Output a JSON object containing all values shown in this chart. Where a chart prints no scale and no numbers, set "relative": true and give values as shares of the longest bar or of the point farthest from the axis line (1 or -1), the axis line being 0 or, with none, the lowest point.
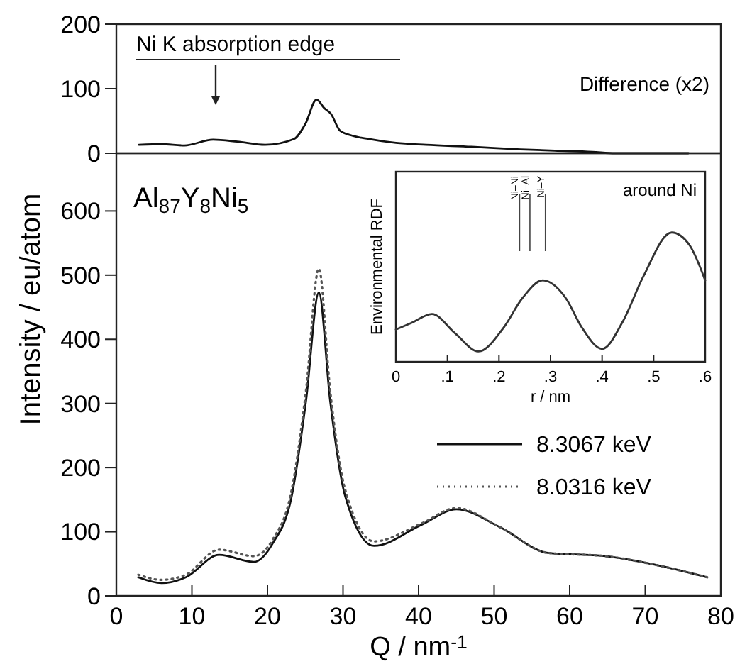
{
  "chart_data": [
    {
      "type": "line",
      "xlim": [
        0,
        80
      ],
      "ylim": [
        0,
        200
      ],
      "yticks": [
        0,
        100,
        200
      ],
      "tick_labels": "y",
      "legend": false,
      "series": [
        {
          "name": "Difference (x2)",
          "color": "#111111",
          "x": [
            3,
            6,
            9,
            12.8,
            16,
            19.7,
            23.5,
            25,
            26.5,
            27.5,
            28.4,
            29.6,
            31,
            33.4,
            37,
            41,
            47,
            53.5,
            58,
            63,
            66,
            70,
            75.7
          ],
          "values": [
            13,
            14,
            12,
            21,
            18,
            13,
            22,
            45,
            83,
            70,
            61,
            35,
            28,
            22,
            16,
            13,
            10,
            6,
            4,
            2,
            0,
            0,
            0
          ]
        }
      ],
      "annotations": [
        "Ni K absorption edge"
      ]
    },
    {
      "type": "line",
      "xlim": [
        0,
        80
      ],
      "ylim": [
        0,
        690
      ],
      "xticks": [
        0,
        10,
        20,
        30,
        40,
        50,
        60,
        70,
        80
      ],
      "yticks": [
        0,
        100,
        200,
        300,
        400,
        500,
        600
      ],
      "xlabel": "Q / nm$^{-1}$",
      "ylabel": "Intensity / eu/atom",
      "legend": "bottom right",
      "series": [
        {
          "name": "8.3067 keV",
          "color": "#111111",
          "line_style": "solid",
          "x": [
            2.9,
            6,
            9.2,
            13.6,
            18.2,
            20.7,
            23.2,
            25.1,
            26.8,
            28.3,
            30.3,
            34.1,
            40.4,
            45,
            50.8,
            57.1,
            64.7,
            71.1,
            78.2
          ],
          "values": [
            29,
            20,
            29,
            64,
            53,
            82,
            155,
            304,
            473,
            304,
            155,
            78,
            111,
            135,
            107,
            67,
            62,
            49,
            29
          ]
        },
        {
          "name": "8.0316 keV",
          "color": "#555555",
          "line_style": "dotted",
          "x": [
            2.9,
            6,
            9.2,
            13.6,
            18.2,
            20.7,
            23.2,
            25.1,
            26.8,
            28.3,
            30.3,
            34.1,
            40.4,
            45,
            50.8,
            57.1,
            64.7,
            71.1,
            78.2
          ],
          "values": [
            33,
            25,
            33,
            72,
            62,
            88,
            165,
            320,
            510,
            320,
            165,
            85,
            113,
            137,
            107,
            67,
            62,
            49,
            29
          ]
        }
      ],
      "annotations": [
        "Al$_{87}$Y$_{8}$Ni$_{5}$"
      ]
    },
    {
      "type": "line",
      "relative": true,
      "xlim": [
        0,
        0.6
      ],
      "xticks": [
        0,
        {
          "value": 0.1,
          "label": ".1"
        },
        {
          "value": 0.2,
          "label": ".2"
        },
        {
          "value": 0.3,
          "label": ".3"
        },
        {
          "value": 0.4,
          "label": ".4"
        },
        {
          "value": 0.5,
          "label": ".5"
        },
        {
          "value": 0.6,
          "label": ".6"
        }
      ],
      "xlabel": "r / nm",
      "ylabel": "Environmental RDF",
      "legend": false,
      "series": [
        {
          "color": "#333333",
          "x": [
            0,
            0.03,
            0.07,
            0.115,
            0.16,
            0.21,
            0.245,
            0.285,
            0.33,
            0.36,
            0.4,
            0.44,
            0.48,
            0.535,
            0.57,
            0.6
          ],
          "values": [
            0.25,
            0.3,
            0.37,
            0.22,
            0.08,
            0.27,
            0.49,
            0.63,
            0.49,
            0.27,
            0.1,
            0.31,
            0.66,
            1,
            0.9,
            0.63
          ]
        }
      ],
      "ref_lines": [
        {
          "axis": "x",
          "value": 0.24,
          "label": "Ni–Ni"
        },
        {
          "axis": "x",
          "value": 0.26,
          "label": "Ni–Al"
        },
        {
          "axis": "x",
          "value": 0.29,
          "label": "Ni–Y"
        }
      ],
      "annotations": [
        "around Ni"
      ]
    }
  ]
}
